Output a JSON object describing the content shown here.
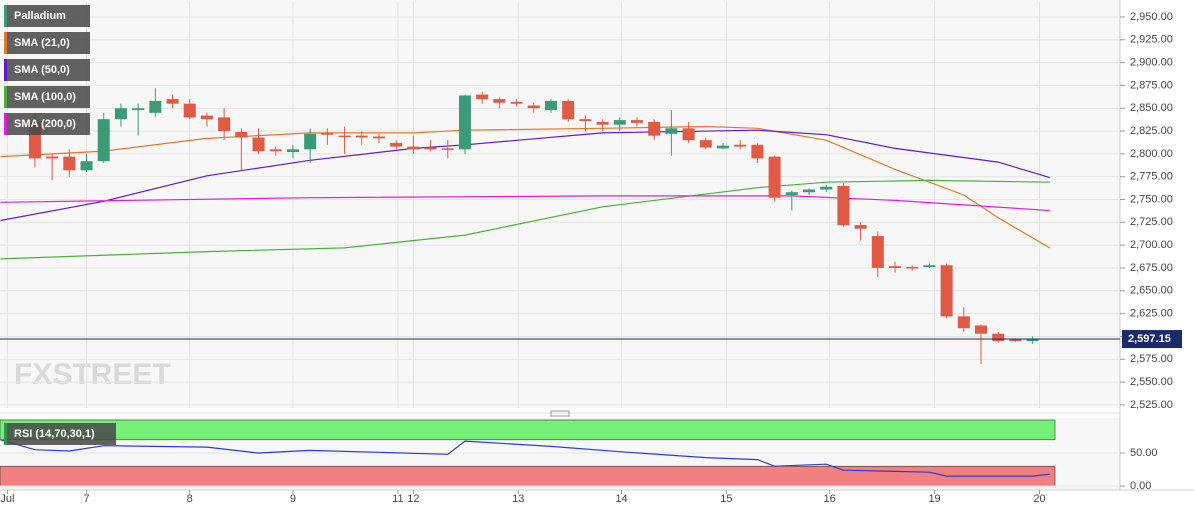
{
  "watermark": "FXSTREET",
  "chart_data": [
    {
      "type": "candlestick",
      "name": "Palladium",
      "up_color": "#3b9a78",
      "down_color": "#e05a45",
      "x": [
        0,
        1,
        2,
        3,
        4,
        5,
        6,
        7,
        8,
        9,
        10,
        11,
        12,
        13,
        14,
        15,
        16,
        17,
        18,
        19,
        20,
        21,
        22,
        23,
        24,
        25,
        26,
        27,
        28,
        29,
        30,
        31,
        32,
        33,
        34,
        35,
        36,
        37,
        38,
        39,
        40,
        41,
        42,
        43,
        44,
        45,
        46,
        47,
        48,
        49,
        50,
        51,
        52,
        53,
        54,
        55,
        56,
        57,
        58
      ],
      "open": [
        2835,
        2797,
        2797,
        2782,
        2792,
        2838,
        2848,
        2845,
        2860,
        2855,
        2842,
        2840,
        2824,
        2818,
        2805,
        2802,
        2805,
        2823,
        2820,
        2820,
        2819,
        2812,
        2808,
        2807,
        2806,
        2805,
        2865,
        2860,
        2857,
        2853,
        2848,
        2858,
        2838,
        2835,
        2832,
        2837,
        2835,
        2822,
        2828,
        2815,
        2806,
        2810,
        2810,
        2797,
        2755,
        2758,
        2761,
        2765,
        2722,
        2710,
        2677,
        2676,
        2676,
        2678,
        2622,
        2612,
        2603,
        2597,
        2595
      ],
      "high": [
        2845,
        2800,
        2805,
        2800,
        2845,
        2855,
        2855,
        2872,
        2865,
        2860,
        2845,
        2850,
        2828,
        2828,
        2808,
        2810,
        2828,
        2828,
        2830,
        2825,
        2822,
        2815,
        2820,
        2815,
        2815,
        2865,
        2868,
        2862,
        2860,
        2856,
        2860,
        2860,
        2842,
        2838,
        2840,
        2840,
        2838,
        2848,
        2835,
        2818,
        2812,
        2815,
        2812,
        2798,
        2760,
        2762,
        2766,
        2768,
        2725,
        2715,
        2682,
        2678,
        2680,
        2680,
        2632,
        2613,
        2605,
        2598,
        2600
      ],
      "low": [
        2785,
        2771,
        2775,
        2780,
        2790,
        2830,
        2820,
        2840,
        2850,
        2838,
        2830,
        2815,
        2782,
        2800,
        2798,
        2795,
        2790,
        2810,
        2800,
        2810,
        2812,
        2805,
        2800,
        2803,
        2795,
        2800,
        2855,
        2850,
        2852,
        2845,
        2845,
        2835,
        2825,
        2825,
        2825,
        2830,
        2815,
        2798,
        2812,
        2805,
        2805,
        2805,
        2790,
        2748,
        2738,
        2755,
        2758,
        2720,
        2705,
        2665,
        2670,
        2672,
        2675,
        2620,
        2605,
        2570,
        2593,
        2594,
        2592
      ],
      "close": [
        2795,
        2795,
        2782,
        2792,
        2838,
        2850,
        2850,
        2858,
        2855,
        2840,
        2838,
        2825,
        2818,
        2803,
        2803,
        2805,
        2822,
        2821,
        2819,
        2818,
        2817,
        2808,
        2805,
        2805,
        2805,
        2864,
        2860,
        2856,
        2855,
        2850,
        2858,
        2838,
        2836,
        2832,
        2837,
        2834,
        2820,
        2828,
        2815,
        2807,
        2809,
        2808,
        2795,
        2752,
        2758,
        2761,
        2764,
        2722,
        2718,
        2675,
        2675,
        2675,
        2678,
        2622,
        2609,
        2603,
        2595,
        2595,
        2597
      ],
      "lines": [
        {
          "name": "SMA (21,0)",
          "color": "#e8782a",
          "x": [
            -2,
            4,
            10,
            16,
            22,
            25,
            33,
            39,
            42,
            46,
            50,
            54,
            56,
            59
          ],
          "values": [
            2797,
            2803,
            2817,
            2823,
            2823,
            2826,
            2828,
            2830,
            2828,
            2815,
            2783,
            2755,
            2730,
            2697
          ]
        },
        {
          "name": "SMA (50,0)",
          "color": "#5b1fc8",
          "x": [
            -2,
            4,
            10,
            16,
            22,
            25,
            33,
            42,
            46,
            50,
            56,
            59
          ],
          "values": [
            2727,
            2748,
            2776,
            2793,
            2806,
            2810,
            2823,
            2826,
            2821,
            2806,
            2791,
            2774
          ]
        },
        {
          "name": "SMA (100,0)",
          "color": "#4caf3a",
          "x": [
            -2,
            10,
            18,
            25,
            33,
            42,
            46,
            52,
            59
          ],
          "values": [
            2685,
            2693,
            2697,
            2711,
            2742,
            2763,
            2769,
            2771,
            2769
          ]
        },
        {
          "name": "SMA (200,0)",
          "color": "#e020e0",
          "x": [
            -2,
            16,
            33,
            44,
            50,
            59
          ],
          "values": [
            2747,
            2752,
            2754,
            2754,
            2749,
            2738
          ]
        }
      ],
      "last_price": {
        "value": 2597.15,
        "label": "2,597.15"
      },
      "xlim": [
        -2.03,
        63.08
      ],
      "ylim": [
        2521.6,
        2966.4
      ],
      "yticks": [
        {
          "value": 2525,
          "label": "2,525.00"
        },
        {
          "value": 2550,
          "label": "2,550.00"
        },
        {
          "value": 2575,
          "label": "2,575.00"
        },
        {
          "value": 2600,
          "label": "2,600.00"
        },
        {
          "value": 2625,
          "label": "2,625.00"
        },
        {
          "value": 2650,
          "label": "2,650.00"
        },
        {
          "value": 2675,
          "label": "2,675.00"
        },
        {
          "value": 2700,
          "label": "2,700.00"
        },
        {
          "value": 2725,
          "label": "2,725.00"
        },
        {
          "value": 2750,
          "label": "2,750.00"
        },
        {
          "value": 2775,
          "label": "2,775.00"
        },
        {
          "value": 2800,
          "label": "2,800.00"
        },
        {
          "value": 2825,
          "label": "2,825.00"
        },
        {
          "value": 2850,
          "label": "2,850.00"
        },
        {
          "value": 2875,
          "label": "2,875.00"
        },
        {
          "value": 2900,
          "label": "2,900.00"
        },
        {
          "value": 2925,
          "label": "2,925.00"
        },
        {
          "value": 2950,
          "label": "2,950.00"
        }
      ]
    },
    {
      "type": "line",
      "series": [
        {
          "name": "RSI (14,70,30,1)",
          "color": "#2a3fd0",
          "x": [
            -2,
            0,
            2,
            4,
            10,
            13,
            16,
            24,
            25,
            30,
            34,
            39,
            42,
            43,
            46,
            47,
            52,
            53,
            58,
            59
          ],
          "values": [
            70,
            55,
            53,
            61,
            59,
            50,
            54,
            48,
            68,
            60,
            52,
            43,
            40,
            30,
            33,
            24,
            21,
            15,
            15,
            18
          ]
        }
      ],
      "bands": [
        {
          "from": 70,
          "to": 100,
          "color": "#78f078"
        },
        {
          "from": 0,
          "to": 30,
          "color": "#f28080"
        }
      ],
      "xlim": [
        -2.03,
        63.08
      ],
      "ylim": [
        -6,
        103
      ],
      "yticks": [
        {
          "value": 0,
          "label": "0.00"
        },
        {
          "value": 50,
          "label": "50.00"
        }
      ],
      "xticks": [
        {
          "value": -1.6,
          "label": "Jul"
        },
        {
          "value": 3,
          "label": "7"
        },
        {
          "value": 9,
          "label": "8"
        },
        {
          "value": 15,
          "label": "9"
        },
        {
          "value": 21.1,
          "label": "11"
        },
        {
          "value": 22,
          "label": "12"
        },
        {
          "value": 28.1,
          "label": "13"
        },
        {
          "value": 34.1,
          "label": "14"
        },
        {
          "value": 40.2,
          "label": "15"
        },
        {
          "value": 46.2,
          "label": "16"
        },
        {
          "value": 52.3,
          "label": "19"
        },
        {
          "value": 58.4,
          "label": "20"
        }
      ]
    }
  ]
}
